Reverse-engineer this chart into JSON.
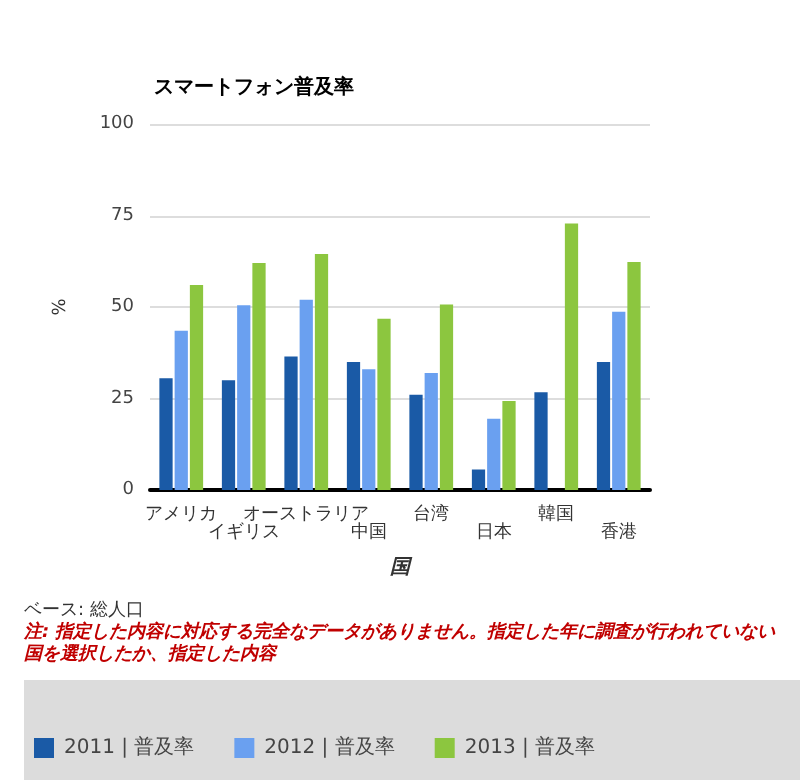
{
  "chart_data": {
    "type": "bar",
    "title": "スマートフォン普及率",
    "xlabel": "国",
    "ylabel": "%",
    "categories": [
      "アメリカ",
      "イギリス",
      "オーストラリア",
      "中国",
      "台湾",
      "日本",
      "韓国",
      "香港"
    ],
    "series": [
      {
        "name": "2011 | 普及率",
        "color": "#1a5aa6",
        "values": [
          30.5,
          30,
          36.5,
          35,
          26,
          5.6,
          26.7,
          35
        ]
      },
      {
        "name": "2012 | 普及率",
        "color": "#6aa0f0",
        "values": [
          43.5,
          50.5,
          52,
          33,
          32,
          19.5,
          null,
          48.7
        ]
      },
      {
        "name": "2013 | 普及率",
        "color": "#8cc63f",
        "values": [
          56,
          62,
          64.5,
          46.8,
          50.7,
          24.3,
          72.8,
          62.3
        ]
      }
    ],
    "ylim": [
      0,
      100
    ],
    "yticks": [
      0,
      25,
      50,
      75,
      100
    ],
    "grid": "y",
    "legend": "bottom",
    "annotations": [
      "ベース: 総人口",
      "注: 指定した内容に対応する完全なデータがありません。指定した年に調査が行われていない国を選択したか、指定した内容"
    ]
  }
}
